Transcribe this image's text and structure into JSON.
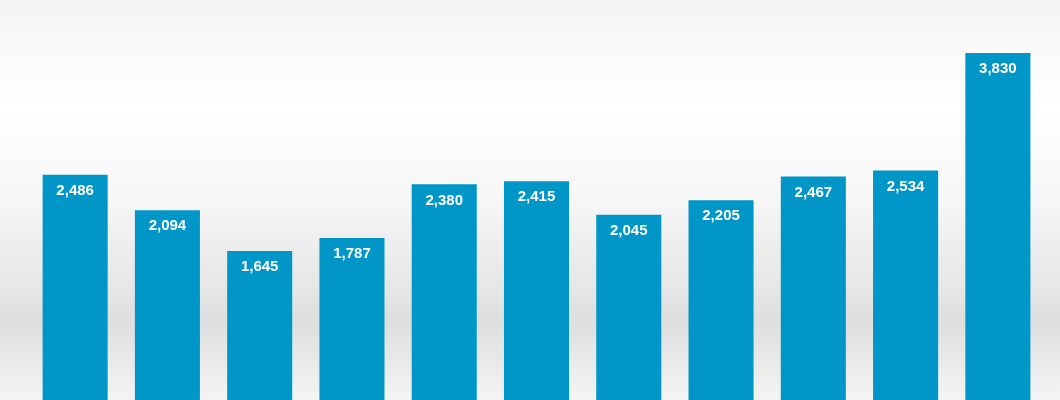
{
  "chart_data": {
    "type": "bar",
    "categories": [
      null,
      null,
      null,
      null,
      null,
      null,
      null,
      null,
      null,
      null,
      null
    ],
    "values": [
      2486,
      2094,
      1645,
      1787,
      2380,
      2415,
      2045,
      2205,
      2467,
      2534,
      3830
    ],
    "value_labels": [
      "2,486",
      "2,094",
      "1,645",
      "1,787",
      "2,380",
      "2,415",
      "2,045",
      "2,205",
      "2,467",
      "2,534",
      "3,830"
    ],
    "color": "#0096c8",
    "tick_labels": false
  }
}
